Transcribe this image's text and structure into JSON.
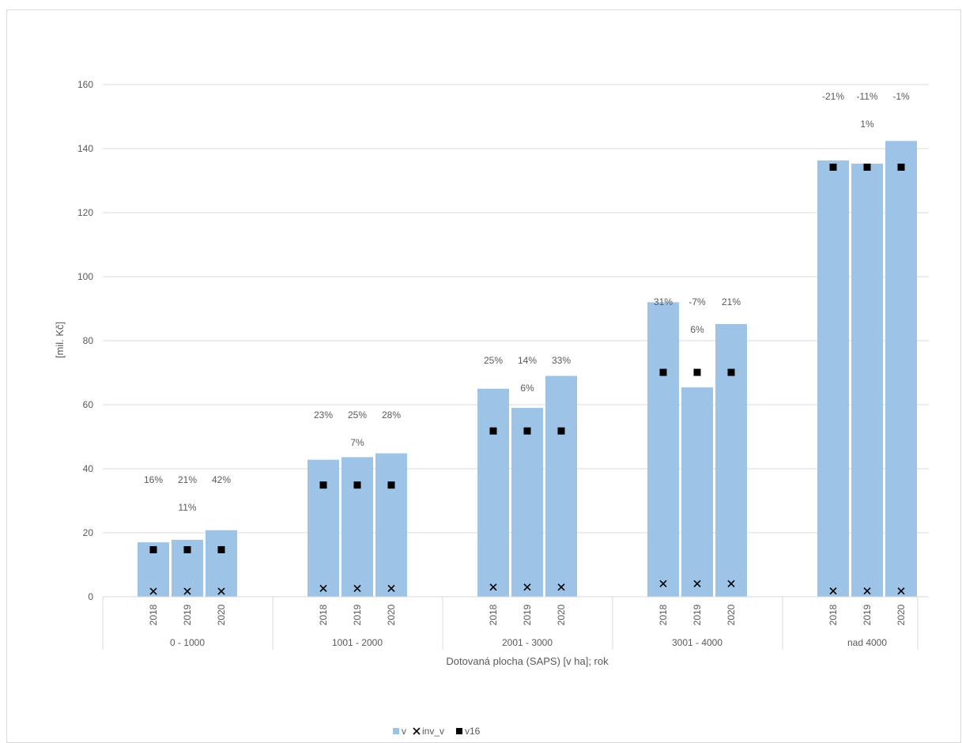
{
  "chart_data": {
    "type": "bar",
    "title": "",
    "ylabel": "[mil. Kč]",
    "xlabel": "Dotovaná plocha (SAPS) [v ha]; rok",
    "ylim": [
      0,
      160
    ],
    "y_ticks": [
      0,
      20,
      40,
      60,
      80,
      100,
      120,
      140,
      160
    ],
    "grid": true,
    "legend_position": "bottom",
    "groups": [
      {
        "label": "0 - 1000",
        "years": [
          "2018",
          "2019",
          "2020"
        ],
        "v": [
          17,
          17.8,
          20.8
        ],
        "inv_v": [
          1.7,
          1.7,
          1.7
        ],
        "v16": [
          14.7,
          14.7,
          14.7
        ],
        "top_labels": [
          "16%",
          "21%",
          "42%"
        ],
        "mid_label": "11%"
      },
      {
        "label": "1001 - 2000",
        "years": [
          "2018",
          "2019",
          "2020"
        ],
        "v": [
          42.8,
          43.6,
          44.8
        ],
        "inv_v": [
          2.6,
          2.6,
          2.6
        ],
        "v16": [
          34.9,
          34.9,
          34.9
        ],
        "top_labels": [
          "23%",
          "25%",
          "28%"
        ],
        "mid_label": "7%"
      },
      {
        "label": "2001 - 3000",
        "years": [
          "2018",
          "2019",
          "2020"
        ],
        "v": [
          65,
          59,
          69
        ],
        "inv_v": [
          3,
          3,
          3
        ],
        "v16": [
          51.8,
          51.8,
          51.8
        ],
        "top_labels": [
          "25%",
          "14%",
          "33%"
        ],
        "mid_label": "6%"
      },
      {
        "label": "3001 - 4000",
        "years": [
          "2018",
          "2019",
          "2020"
        ],
        "v": [
          92,
          65.4,
          85.2
        ],
        "inv_v": [
          4.1,
          4.1,
          4.1
        ],
        "v16": [
          70.1,
          70.1,
          70.1
        ],
        "top_labels": [
          "31%",
          "-7%",
          "21%"
        ],
        "mid_label": "6%"
      },
      {
        "label": "nad 4000",
        "years": [
          "2018",
          "2019",
          "2020"
        ],
        "v": [
          136.3,
          135.3,
          142.4
        ],
        "inv_v": [
          1.8,
          1.8,
          1.8
        ],
        "v16": [
          134.2,
          134.2,
          134.2
        ],
        "top_labels": [
          "-21%",
          "-11%",
          "-1%"
        ],
        "mid_label": "1%"
      }
    ],
    "series": [
      {
        "name": "v",
        "color": "#9dc3e6",
        "marker": "bar"
      },
      {
        "name": "inv_v",
        "color": "#000000",
        "marker": "x"
      },
      {
        "name": "v16",
        "color": "#000000",
        "marker": "square"
      }
    ]
  }
}
